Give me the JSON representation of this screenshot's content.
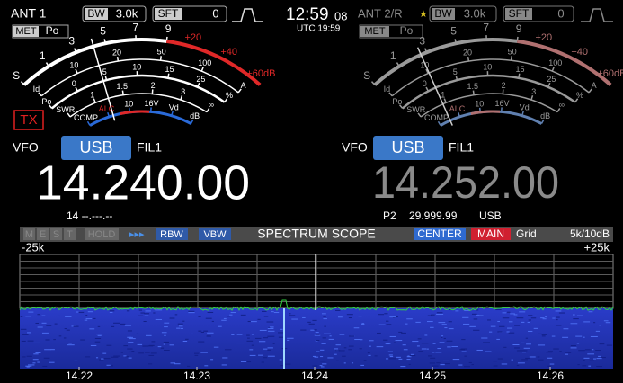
{
  "left": {
    "antenna": "ANT 1",
    "bw_label": "BW",
    "bw": "3.0k",
    "sft_label": "SFT",
    "sft": "0",
    "met": "MET",
    "met_mode": "Po",
    "tx": "TX",
    "vfo": "VFO",
    "mode": "USB",
    "filter": "FIL1",
    "frequency": "14.240.00",
    "sub": "14 --.---.--"
  },
  "clock": {
    "time": "12:59",
    "seconds": "08",
    "utc": "UTC 19:59"
  },
  "right": {
    "antenna": "ANT 2/R",
    "star": "★",
    "bw_label": "BW",
    "bw": "3.0k",
    "sft_label": "SFT",
    "sft": "0",
    "met": "MET",
    "met_mode": "Po",
    "vfo": "VFO",
    "mode": "USB",
    "filter": "FIL1",
    "frequency": "14.252.00",
    "sub_label": "P2",
    "sub_frequency": "29.999.99",
    "sub_mode": "USB"
  },
  "meter_scale": {
    "s": [
      "S",
      "1",
      "3",
      "5",
      "7",
      "9"
    ],
    "s_over": [
      "+20",
      "+40",
      "+60dB"
    ],
    "id": [
      "Id",
      "10",
      "20",
      "50",
      "100",
      "A"
    ],
    "po": [
      "Po",
      "0",
      "5",
      "10",
      "15",
      "25",
      "%"
    ],
    "swr": [
      "SWR",
      "1",
      "1.5",
      "2",
      "3",
      "∞"
    ],
    "comp": [
      "COMP",
      "ALC",
      "10",
      "16V",
      "Vd",
      "dB"
    ]
  },
  "scope": {
    "status": [
      "M",
      "E",
      "S",
      "T"
    ],
    "hold": "HOLD",
    "arrows": "▸▸▸",
    "rbw": "RBW",
    "vbw": "VBW",
    "title": "SPECTRUM SCOPE",
    "center": "CENTER",
    "main": "MAIN",
    "grid": "Grid",
    "span": "5k/10dB",
    "left_edge": "-25k",
    "right_edge": "+25k",
    "freq_labels": [
      "14.22",
      "14.23",
      "14.24",
      "14.25",
      "14.26"
    ]
  }
}
